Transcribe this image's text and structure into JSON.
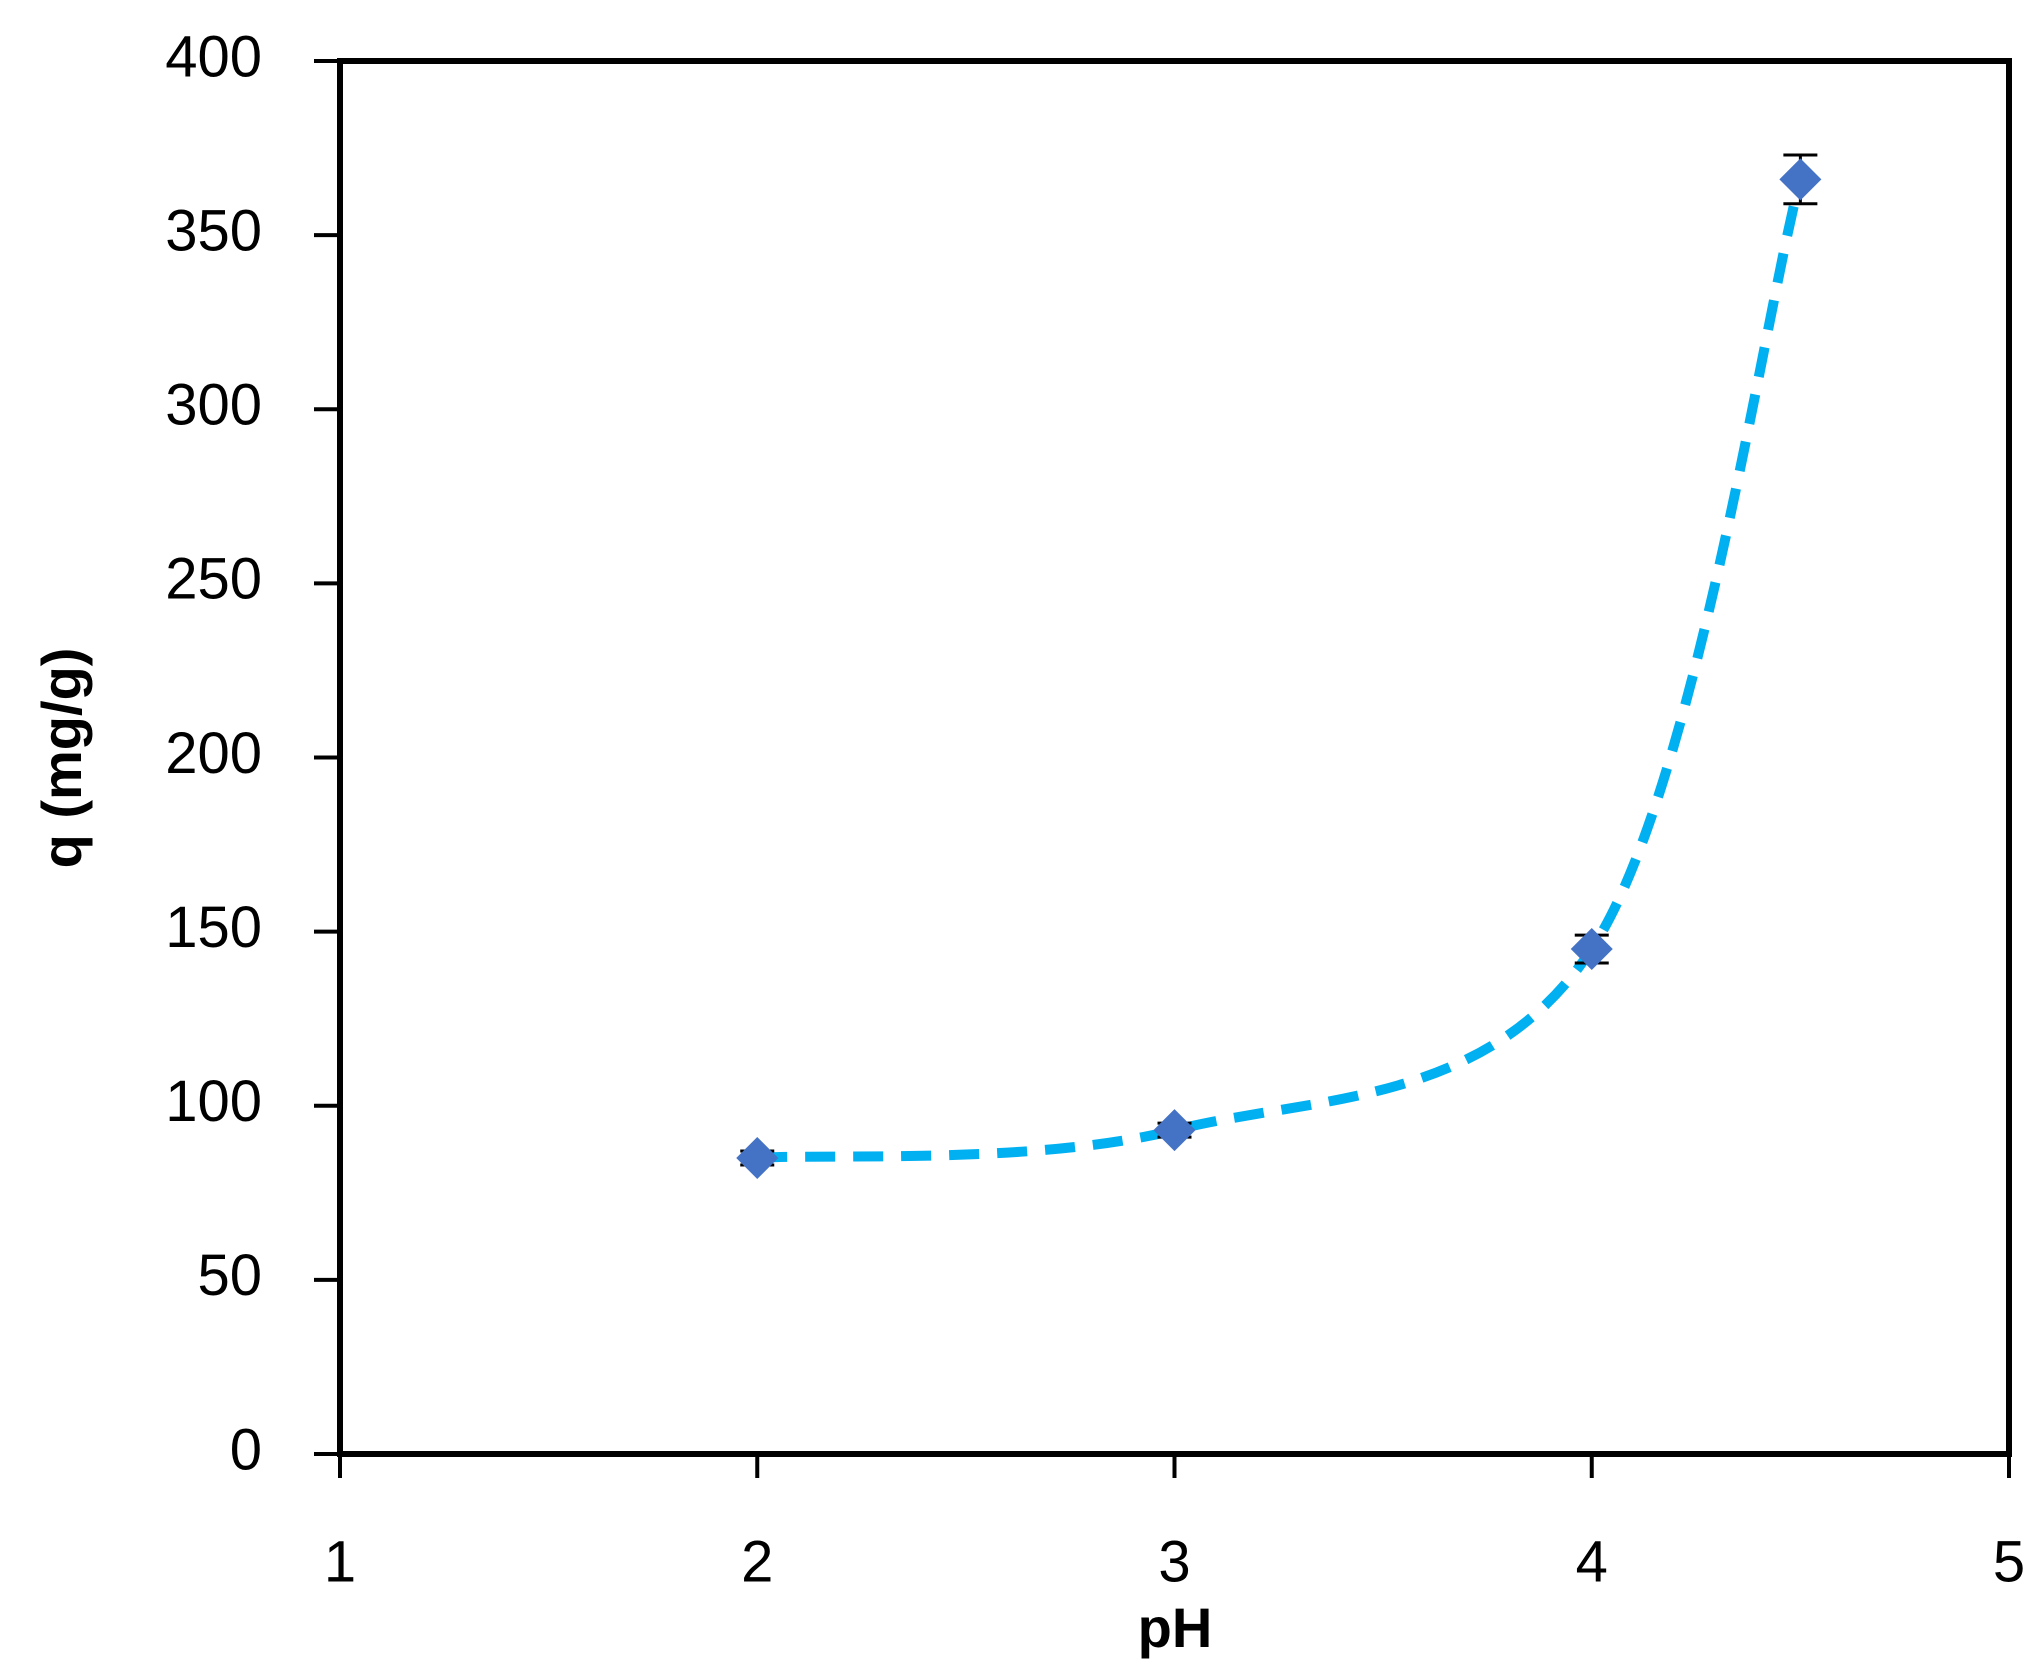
{
  "chart_data": {
    "type": "scatter",
    "x_label": "pH",
    "y_label": "q (mg/g)",
    "xlim": [
      1,
      5
    ],
    "ylim": [
      0,
      400
    ],
    "xticks": [
      1,
      2,
      3,
      4,
      5
    ],
    "yticks": [
      0,
      50,
      100,
      150,
      200,
      250,
      300,
      350,
      400
    ],
    "grid": false,
    "series": [
      {
        "x": [
          2,
          3,
          4,
          4.5
        ],
        "values": [
          85,
          93,
          145,
          366
        ],
        "errors": [
          2,
          2,
          4,
          7
        ],
        "color": "#4472c4",
        "line_color": "#00b0f0",
        "line_style": "dashed",
        "smooth": true
      }
    ]
  }
}
